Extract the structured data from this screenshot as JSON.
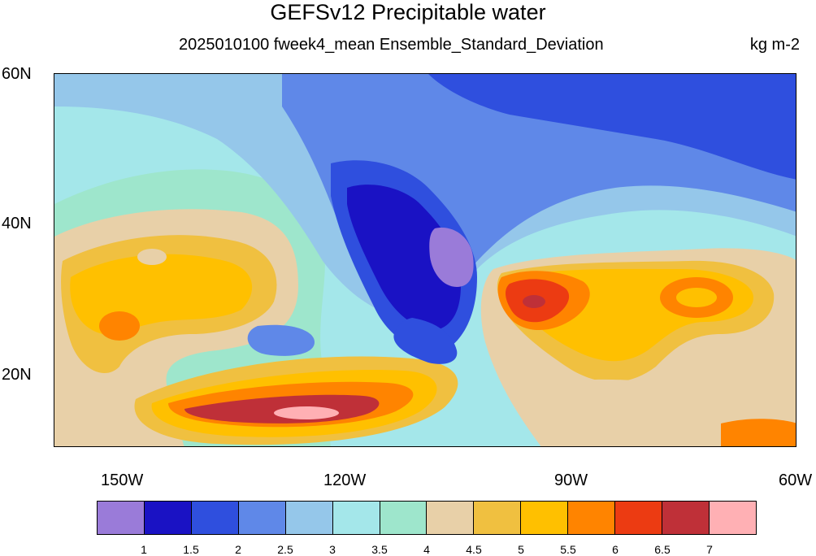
{
  "title": "GEFSv12 Precipitable water",
  "subtitle": "2025010100 fweek4_mean Ensemble_Standard_Deviation",
  "units": "kg m-2",
  "lat_labels": [
    "60N",
    "40N",
    "20N"
  ],
  "lon_labels": [
    "150W",
    "120W",
    "90W",
    "60W"
  ],
  "colorbar": {
    "colors": [
      "#9a7bd9",
      "#1a12c4",
      "#2f4fde",
      "#5f88e8",
      "#95c7ea",
      "#a4e7ea",
      "#9ee6cc",
      "#e8d0a8",
      "#f0c040",
      "#ffc000",
      "#ff8400",
      "#ec3b12",
      "#bf3038",
      "#ffb0b4"
    ],
    "labels": [
      "1",
      "1.5",
      "2",
      "2.5",
      "3",
      "3.5",
      "4",
      "4.5",
      "5",
      "5.5",
      "6",
      "6.5",
      "7"
    ]
  },
  "map": {
    "lat_range": [
      10,
      60
    ],
    "lon_range": [
      -160,
      -60
    ],
    "colors": {
      "land_low": "#2f4fde",
      "purple": "#9a7bd9",
      "dark_blue": "#1a12c4",
      "mid_blue": "#5f88e8",
      "light_blue": "#95c7ea",
      "cyan": "#a4e7ea",
      "mint": "#9ee6cc",
      "tan": "#e8d0a8",
      "gold": "#f0c040",
      "yellow": "#ffc000",
      "orange": "#ff8400",
      "red": "#ec3b12",
      "dark_red": "#bf3038",
      "pink": "#ffb0b4"
    }
  }
}
